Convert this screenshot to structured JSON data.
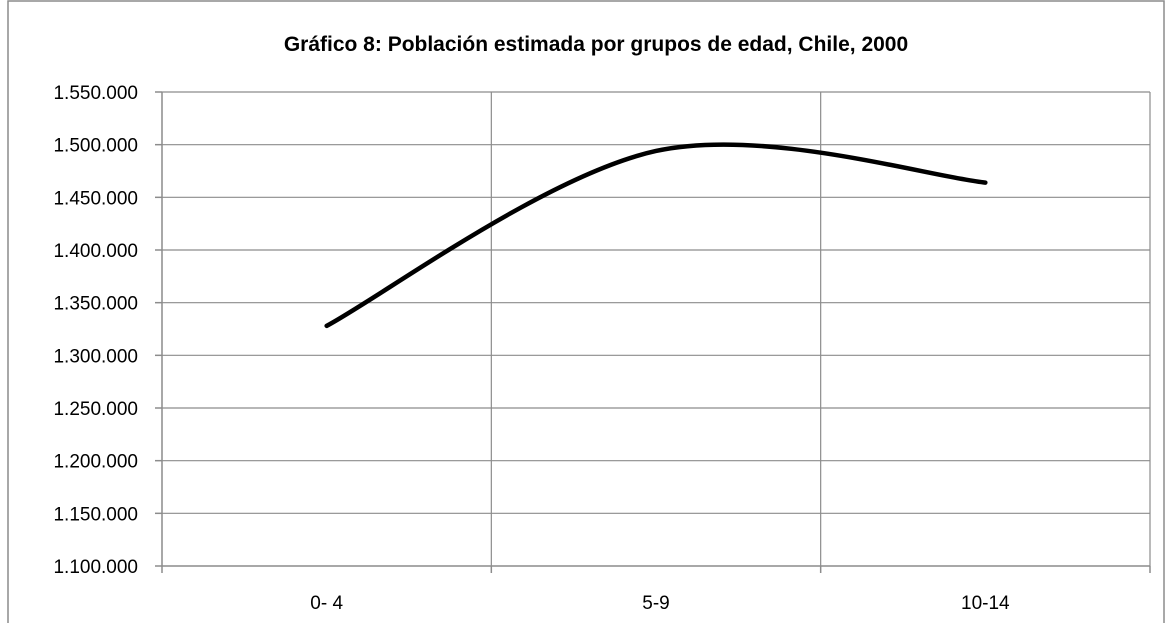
{
  "chart_data": {
    "type": "line",
    "title": "Gráfico 8: Población estimada por grupos de edad, Chile, 2000",
    "xlabel": "",
    "ylabel": "",
    "categories": [
      "0- 4",
      "5-9",
      "10-14"
    ],
    "series": [
      {
        "values": [
          1328000,
          1494000,
          1464000
        ],
        "color": "#000000",
        "smooth": true
      }
    ],
    "ylim": [
      1100000,
      1550000
    ],
    "y_ticks": [
      1100000,
      1150000,
      1200000,
      1250000,
      1300000,
      1350000,
      1400000,
      1450000,
      1500000,
      1550000
    ],
    "y_tick_labels": [
      "1.100.000",
      "1.150.000",
      "1.200.000",
      "1.250.000",
      "1.300.000",
      "1.350.000",
      "1.400.000",
      "1.450.000",
      "1.500.000",
      "1.550.000"
    ],
    "grid": true,
    "legend": "none"
  }
}
